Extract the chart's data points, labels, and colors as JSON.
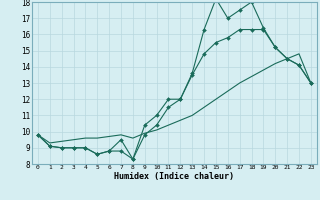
{
  "x_values": [
    0,
    1,
    2,
    3,
    4,
    5,
    6,
    7,
    8,
    9,
    10,
    11,
    12,
    13,
    14,
    15,
    16,
    17,
    18,
    19,
    20,
    21,
    22,
    23
  ],
  "line1": [
    9.8,
    9.1,
    9.0,
    9.0,
    9.0,
    8.6,
    8.8,
    9.5,
    8.3,
    10.4,
    11.0,
    12.0,
    12.0,
    13.6,
    16.3,
    18.2,
    17.0,
    17.5,
    18.0,
    16.4,
    15.2,
    14.5,
    14.1,
    13.0
  ],
  "line2": [
    9.8,
    9.1,
    9.0,
    9.0,
    9.0,
    8.6,
    8.8,
    8.8,
    8.3,
    9.8,
    10.4,
    11.5,
    12.0,
    13.5,
    14.8,
    15.5,
    15.8,
    16.3,
    16.3,
    16.3,
    15.2,
    14.5,
    14.1,
    13.0
  ],
  "line3": [
    9.8,
    9.3,
    9.4,
    9.5,
    9.6,
    9.6,
    9.7,
    9.8,
    9.6,
    9.9,
    10.1,
    10.4,
    10.7,
    11.0,
    11.5,
    12.0,
    12.5,
    13.0,
    13.4,
    13.8,
    14.2,
    14.5,
    14.8,
    13.0
  ],
  "ylim": [
    8,
    18
  ],
  "xlim": [
    -0.5,
    23.5
  ],
  "yticks": [
    8,
    9,
    10,
    11,
    12,
    13,
    14,
    15,
    16,
    17,
    18
  ],
  "xticks": [
    0,
    1,
    2,
    3,
    4,
    5,
    6,
    7,
    8,
    9,
    10,
    11,
    12,
    13,
    14,
    15,
    16,
    17,
    18,
    19,
    20,
    21,
    22,
    23
  ],
  "xlabel": "Humidex (Indice chaleur)",
  "line_color": "#1a6b5a",
  "bg_color": "#d6eef2",
  "grid_color": "#b8d8df",
  "spine_color": "#7aadbb"
}
